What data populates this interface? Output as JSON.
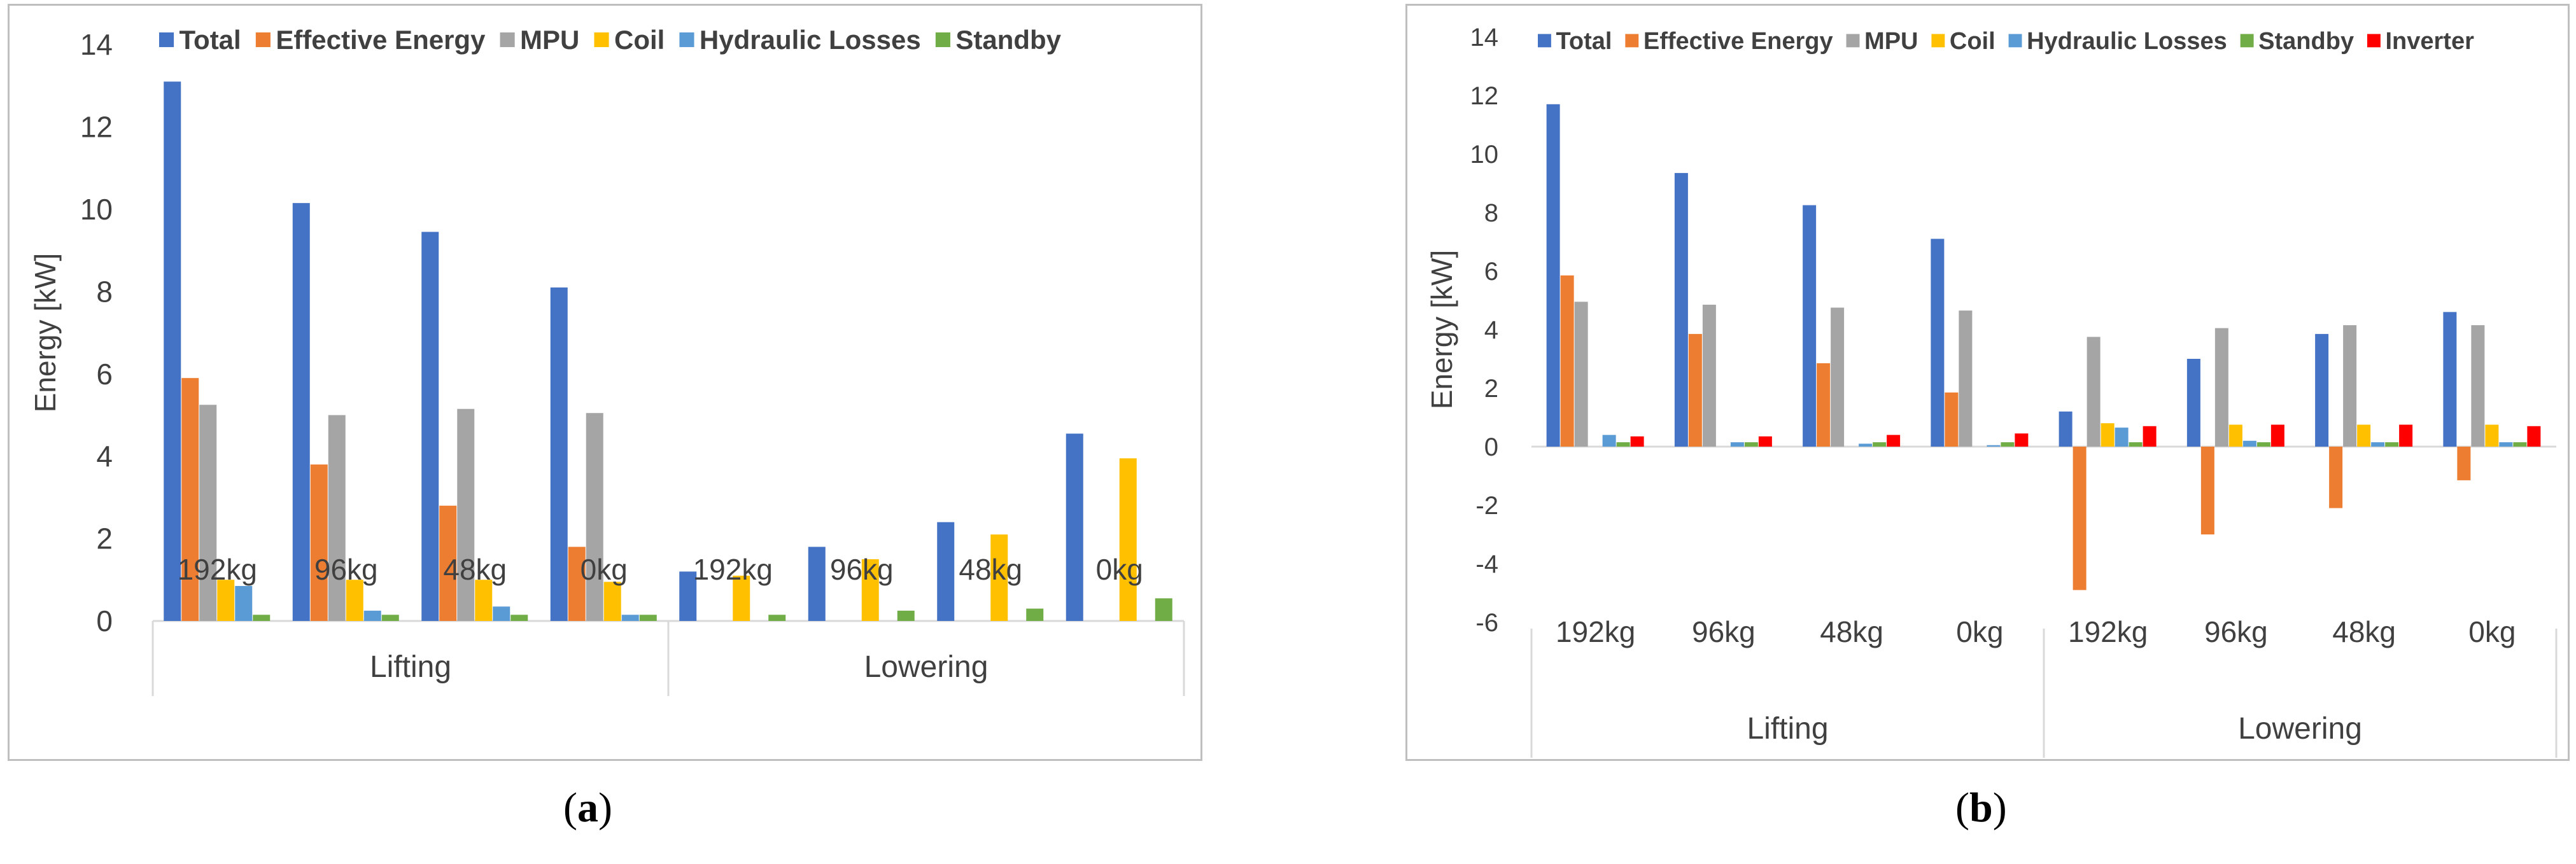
{
  "chart_data": [
    {
      "id": "a",
      "type": "bar",
      "ylabel": "Energy [kW]",
      "xlabel": "",
      "ylim": [
        0,
        14
      ],
      "ytick_step": 2,
      "grid": false,
      "legend_position": "top",
      "categories": [
        "192kg",
        "96kg",
        "48kg",
        "0kg",
        "192kg",
        "96kg",
        "48kg",
        "0kg"
      ],
      "groups": [
        {
          "label": "Lifting",
          "span": 4
        },
        {
          "label": "Lowering",
          "span": 4
        }
      ],
      "series": [
        {
          "name": "Total",
          "color": "#4472c4",
          "values": [
            13.1,
            10.15,
            9.45,
            8.1,
            1.2,
            1.8,
            2.4,
            4.55
          ]
        },
        {
          "name": "Effective Energy",
          "color": "#ed7d31",
          "values": [
            5.9,
            3.8,
            2.8,
            1.8,
            0,
            0,
            0,
            0
          ]
        },
        {
          "name": "MPU",
          "color": "#a5a5a5",
          "values": [
            5.25,
            5.0,
            5.15,
            5.05,
            0,
            0,
            0,
            0
          ]
        },
        {
          "name": "Coil",
          "color": "#ffc000",
          "values": [
            1.0,
            1.0,
            1.0,
            0.95,
            1.1,
            1.5,
            2.1,
            3.95
          ]
        },
        {
          "name": "Hydraulic Losses",
          "color": "#5b9bd5",
          "values": [
            0.85,
            0.25,
            0.35,
            0.15,
            0,
            0,
            0,
            0
          ]
        },
        {
          "name": "Standby",
          "color": "#70ad47",
          "values": [
            0.15,
            0.15,
            0.15,
            0.15,
            0.15,
            0.25,
            0.3,
            0.55
          ]
        }
      ]
    },
    {
      "id": "b",
      "type": "bar",
      "ylabel": "Energy [kW]",
      "xlabel": "",
      "ylim": [
        -6,
        14
      ],
      "ytick_step": 2,
      "grid": false,
      "legend_position": "top",
      "categories": [
        "192kg",
        "96kg",
        "48kg",
        "0kg",
        "192kg",
        "96kg",
        "48kg",
        "0kg"
      ],
      "groups": [
        {
          "label": "Lifting",
          "span": 4
        },
        {
          "label": "Lowering",
          "span": 4
        }
      ],
      "series": [
        {
          "name": "Total",
          "color": "#4472c4",
          "values": [
            11.7,
            9.35,
            8.25,
            7.1,
            1.2,
            3.0,
            3.85,
            4.6
          ]
        },
        {
          "name": "Effective Energy",
          "color": "#ed7d31",
          "values": [
            5.85,
            3.85,
            2.85,
            1.85,
            -4.9,
            -3.0,
            -2.1,
            -1.15
          ]
        },
        {
          "name": "MPU",
          "color": "#a5a5a5",
          "values": [
            4.95,
            4.85,
            4.75,
            4.65,
            3.75,
            4.05,
            4.15,
            4.15
          ]
        },
        {
          "name": "Coil",
          "color": "#ffc000",
          "values": [
            0,
            0,
            0,
            0,
            0.8,
            0.75,
            0.75,
            0.75
          ]
        },
        {
          "name": "Hydraulic Losses",
          "color": "#5b9bd5",
          "values": [
            0.4,
            0.15,
            0.1,
            0.05,
            0.65,
            0.2,
            0.15,
            0.15
          ]
        },
        {
          "name": "Standby",
          "color": "#70ad47",
          "values": [
            0.15,
            0.15,
            0.15,
            0.15,
            0.15,
            0.15,
            0.15,
            0.15
          ]
        },
        {
          "name": "Inverter",
          "color": "#ff0000",
          "values": [
            0.35,
            0.35,
            0.4,
            0.45,
            0.7,
            0.75,
            0.75,
            0.7
          ]
        }
      ]
    }
  ],
  "captions": {
    "a": "a",
    "b": "b"
  }
}
